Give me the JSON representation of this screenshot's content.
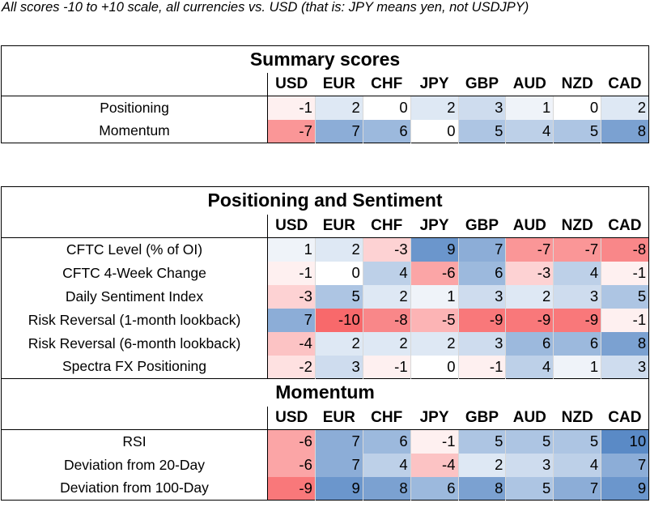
{
  "caption": "All scores -10 to +10 scale, all currencies vs. USD (that is: JPY means yen, not USDJPY)",
  "currencies": [
    "USD",
    "EUR",
    "CHF",
    "JPY",
    "GBP",
    "AUD",
    "NZD",
    "CAD"
  ],
  "color_scale": {
    "negative": "#f8696b",
    "neutral": "#ffffff",
    "positive": "#5a8ac6"
  },
  "summary": {
    "title": "Summary scores",
    "rows": [
      {
        "label": "Positioning",
        "values": [
          -1,
          2,
          0,
          2,
          3,
          1,
          0,
          2
        ]
      },
      {
        "label": "Momentum",
        "values": [
          -7,
          7,
          6,
          0,
          5,
          4,
          5,
          8
        ]
      }
    ]
  },
  "positioning": {
    "title": "Positioning and Sentiment",
    "rows": [
      {
        "label": "CFTC Level (% of OI)",
        "values": [
          1,
          2,
          -3,
          9,
          7,
          -7,
          -7,
          -8
        ]
      },
      {
        "label": "CFTC 4-Week Change",
        "values": [
          -1,
          0,
          4,
          -6,
          6,
          -3,
          4,
          -1
        ]
      },
      {
        "label": "Daily Sentiment Index",
        "values": [
          -3,
          5,
          2,
          1,
          3,
          2,
          3,
          5
        ]
      },
      {
        "label": "Risk Reversal (1-month lookback)",
        "values": [
          7,
          -10,
          -8,
          -5,
          -9,
          -9,
          -9,
          -1
        ]
      },
      {
        "label": "Risk Reversal (6-month lookback)",
        "values": [
          -4,
          2,
          2,
          2,
          3,
          6,
          6,
          8
        ]
      },
      {
        "label": "Spectra FX Positioning",
        "values": [
          -2,
          3,
          -1,
          0,
          -1,
          4,
          1,
          3
        ]
      }
    ]
  },
  "momentum": {
    "title": "Momentum",
    "rows": [
      {
        "label": "RSI",
        "values": [
          -6,
          7,
          6,
          -1,
          5,
          5,
          5,
          10
        ]
      },
      {
        "label": "Deviation from 20-Day",
        "values": [
          -6,
          7,
          4,
          -4,
          2,
          3,
          4,
          7
        ]
      },
      {
        "label": "Deviation from 100-Day",
        "values": [
          -9,
          9,
          8,
          6,
          8,
          5,
          7,
          9
        ]
      }
    ]
  }
}
